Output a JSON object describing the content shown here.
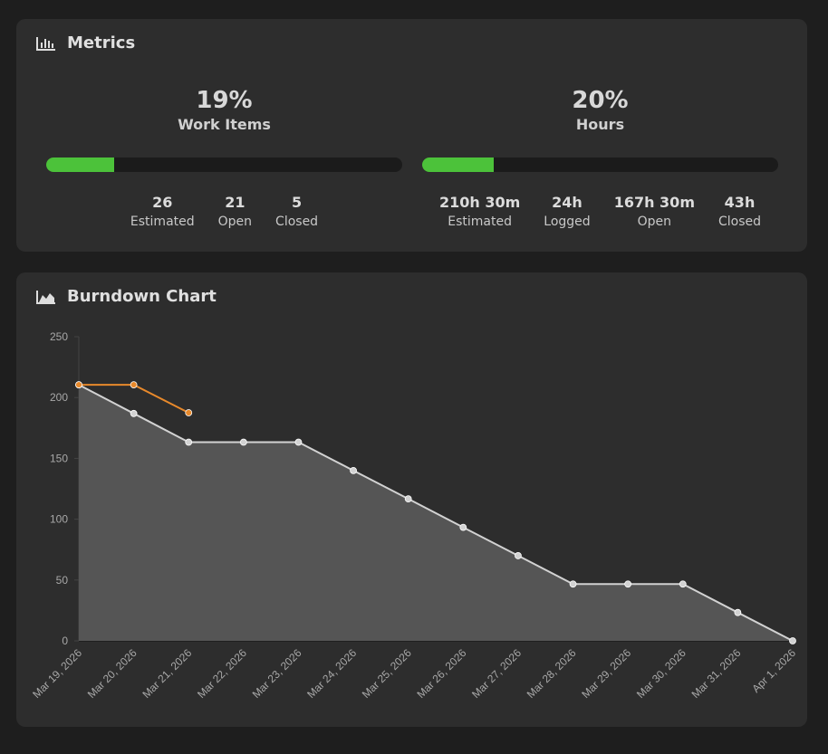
{
  "metrics": {
    "title": "Metrics",
    "groups": [
      {
        "percent_label": "19%",
        "percent": 19,
        "label": "Work Items",
        "stats": [
          {
            "value": 26,
            "label": "Estimated"
          },
          {
            "value": 21,
            "label": "Open"
          },
          {
            "value": 5,
            "label": "Closed"
          }
        ]
      },
      {
        "percent_label": "20%",
        "percent": 20,
        "label": "Hours",
        "stats": [
          {
            "value": "210h 30m",
            "label": "Estimated"
          },
          {
            "value": "24h",
            "label": "Logged"
          },
          {
            "value": "167h 30m",
            "label": "Open"
          },
          {
            "value": "43h",
            "label": "Closed"
          }
        ]
      }
    ]
  },
  "chart_data": {
    "type": "line",
    "title": "Burndown Chart",
    "categories": [
      "Mar 19, 2026",
      "Mar 20, 2026",
      "Mar 21, 2026",
      "Mar 22, 2026",
      "Mar 23, 2026",
      "Mar 24, 2026",
      "Mar 25, 2026",
      "Mar 26, 2026",
      "Mar 27, 2026",
      "Mar 28, 2026",
      "Mar 29, 2026",
      "Mar 30, 2026",
      "Mar 31, 2026",
      "Apr 1, 2026"
    ],
    "series": [
      {
        "color": "#d2d2d2",
        "fill": "#555555",
        "values": [
          210.5,
          186.9,
          163.3,
          163.3,
          163.3,
          140,
          116.7,
          93.3,
          70,
          46.7,
          46.7,
          46.7,
          23.3,
          0
        ]
      },
      {
        "color": "#e8892b",
        "values": [
          210.5,
          210.5,
          187.5,
          null,
          null,
          null,
          null,
          null,
          null,
          null,
          null,
          null,
          null,
          null
        ]
      }
    ],
    "ylim": [
      0,
      250
    ],
    "yticks": [
      0,
      50,
      100,
      150,
      200,
      250
    ],
    "grid": false
  }
}
